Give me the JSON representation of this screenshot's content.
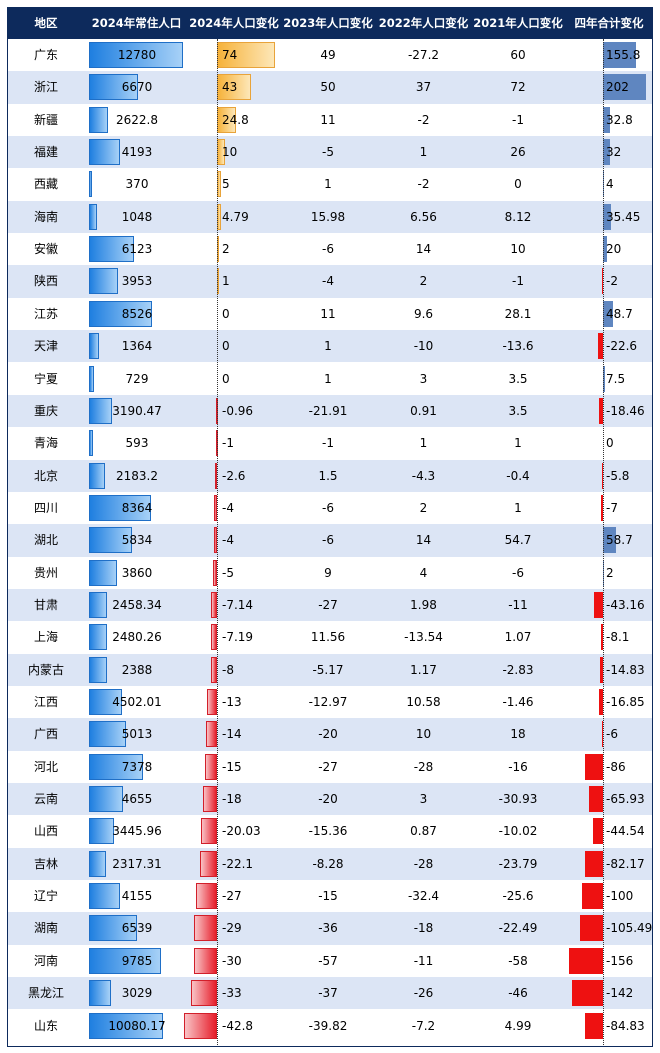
{
  "headers": [
    "地区",
    "2024年常住人口",
    "2024年人口变化",
    "2023年人口变化",
    "2022年人口变化",
    "2021年人口变化",
    "四年合计变化"
  ],
  "rows": [
    {
      "region": "广东",
      "pop": "12780",
      "c2024": "74",
      "c2023": "49",
      "c2022": "-27.2",
      "c2021": "60",
      "total": "155.8"
    },
    {
      "region": "浙江",
      "pop": "6670",
      "c2024": "43",
      "c2023": "50",
      "c2022": "37",
      "c2021": "72",
      "total": "202"
    },
    {
      "region": "新疆",
      "pop": "2622.8",
      "c2024": "24.8",
      "c2023": "11",
      "c2022": "-2",
      "c2021": "-1",
      "total": "32.8"
    },
    {
      "region": "福建",
      "pop": "4193",
      "c2024": "10",
      "c2023": "-5",
      "c2022": "1",
      "c2021": "26",
      "total": "32"
    },
    {
      "region": "西藏",
      "pop": "370",
      "c2024": "5",
      "c2023": "1",
      "c2022": "-2",
      "c2021": "0",
      "total": "4"
    },
    {
      "region": "海南",
      "pop": "1048",
      "c2024": "4.79",
      "c2023": "15.98",
      "c2022": "6.56",
      "c2021": "8.12",
      "total": "35.45"
    },
    {
      "region": "安徽",
      "pop": "6123",
      "c2024": "2",
      "c2023": "-6",
      "c2022": "14",
      "c2021": "10",
      "total": "20"
    },
    {
      "region": "陕西",
      "pop": "3953",
      "c2024": "1",
      "c2023": "-4",
      "c2022": "2",
      "c2021": "-1",
      "total": "-2"
    },
    {
      "region": "江苏",
      "pop": "8526",
      "c2024": "0",
      "c2023": "11",
      "c2022": "9.6",
      "c2021": "28.1",
      "total": "48.7"
    },
    {
      "region": "天津",
      "pop": "1364",
      "c2024": "0",
      "c2023": "1",
      "c2022": "-10",
      "c2021": "-13.6",
      "total": "-22.6"
    },
    {
      "region": "宁夏",
      "pop": "729",
      "c2024": "0",
      "c2023": "1",
      "c2022": "3",
      "c2021": "3.5",
      "total": "7.5"
    },
    {
      "region": "重庆",
      "pop": "3190.47",
      "c2024": "-0.96",
      "c2023": "-21.91",
      "c2022": "0.91",
      "c2021": "3.5",
      "total": "-18.46"
    },
    {
      "region": "青海",
      "pop": "593",
      "c2024": "-1",
      "c2023": "-1",
      "c2022": "1",
      "c2021": "1",
      "total": "0"
    },
    {
      "region": "北京",
      "pop": "2183.2",
      "c2024": "-2.6",
      "c2023": "1.5",
      "c2022": "-4.3",
      "c2021": "-0.4",
      "total": "-5.8"
    },
    {
      "region": "四川",
      "pop": "8364",
      "c2024": "-4",
      "c2023": "-6",
      "c2022": "2",
      "c2021": "1",
      "total": "-7"
    },
    {
      "region": "湖北",
      "pop": "5834",
      "c2024": "-4",
      "c2023": "-6",
      "c2022": "14",
      "c2021": "54.7",
      "total": "58.7"
    },
    {
      "region": "贵州",
      "pop": "3860",
      "c2024": "-5",
      "c2023": "9",
      "c2022": "4",
      "c2021": "-6",
      "total": "2"
    },
    {
      "region": "甘肃",
      "pop": "2458.34",
      "c2024": "-7.14",
      "c2023": "-27",
      "c2022": "1.98",
      "c2021": "-11",
      "total": "-43.16"
    },
    {
      "region": "上海",
      "pop": "2480.26",
      "c2024": "-7.19",
      "c2023": "11.56",
      "c2022": "-13.54",
      "c2021": "1.07",
      "total": "-8.1"
    },
    {
      "region": "内蒙古",
      "pop": "2388",
      "c2024": "-8",
      "c2023": "-5.17",
      "c2022": "1.17",
      "c2021": "-2.83",
      "total": "-14.83"
    },
    {
      "region": "江西",
      "pop": "4502.01",
      "c2024": "-13",
      "c2023": "-12.97",
      "c2022": "10.58",
      "c2021": "-1.46",
      "total": "-16.85"
    },
    {
      "region": "广西",
      "pop": "5013",
      "c2024": "-14",
      "c2023": "-20",
      "c2022": "10",
      "c2021": "18",
      "total": "-6"
    },
    {
      "region": "河北",
      "pop": "7378",
      "c2024": "-15",
      "c2023": "-27",
      "c2022": "-28",
      "c2021": "-16",
      "total": "-86"
    },
    {
      "region": "云南",
      "pop": "4655",
      "c2024": "-18",
      "c2023": "-20",
      "c2022": "3",
      "c2021": "-30.93",
      "total": "-65.93"
    },
    {
      "region": "山西",
      "pop": "3445.96",
      "c2024": "-20.03",
      "c2023": "-15.36",
      "c2022": "0.87",
      "c2021": "-10.02",
      "total": "-44.54"
    },
    {
      "region": "吉林",
      "pop": "2317.31",
      "c2024": "-22.1",
      "c2023": "-8.28",
      "c2022": "-28",
      "c2021": "-23.79",
      "total": "-82.17"
    },
    {
      "region": "辽宁",
      "pop": "4155",
      "c2024": "-27",
      "c2023": "-15",
      "c2022": "-32.4",
      "c2021": "-25.6",
      "total": "-100"
    },
    {
      "region": "湖南",
      "pop": "6539",
      "c2024": "-29",
      "c2023": "-36",
      "c2022": "-18",
      "c2021": "-22.49",
      "total": "-105.49"
    },
    {
      "region": "河南",
      "pop": "9785",
      "c2024": "-30",
      "c2023": "-57",
      "c2022": "-11",
      "c2021": "-58",
      "total": "-156"
    },
    {
      "region": "黑龙江",
      "pop": "3029",
      "c2024": "-33",
      "c2023": "-37",
      "c2022": "-26",
      "c2021": "-46",
      "total": "-142"
    },
    {
      "region": "山东",
      "pop": "10080.17",
      "c2024": "-42.8",
      "c2023": "-39.82",
      "c2022": "-7.2",
      "c2021": "4.99",
      "total": "-84.83"
    }
  ],
  "colors": {
    "header_bg": "#0d2a5c",
    "row_alt": "#dce5f5",
    "pop_bar": "#1f7fe0",
    "change_pos": "#f6b23a",
    "change_neg": "#e61d2a",
    "total_pos": "#5f86c0",
    "total_neg": "#ee1111"
  }
}
